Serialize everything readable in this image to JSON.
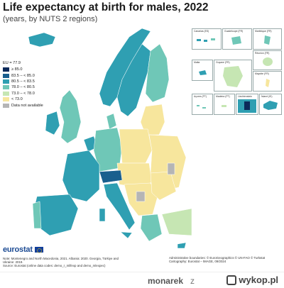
{
  "title": "Life expectancy at birth for males, 2022",
  "subtitle": "(years, by NUTS 2 regions)",
  "legend": {
    "average": "EU = 77.9",
    "classes": [
      {
        "label": "≥ 85.0",
        "color": "#0c2a5a"
      },
      {
        "label": "83.5 – < 85.0",
        "color": "#1a5f8e"
      },
      {
        "label": "80.5 – < 83.5",
        "color": "#2f9fb2"
      },
      {
        "label": "78.0 – < 80.5",
        "color": "#6fc7b7"
      },
      {
        "label": "73.0 – < 78.0",
        "color": "#c6e6b3"
      },
      {
        "label": "< 73.0",
        "color": "#f7e69d"
      },
      {
        "label": "Data not available",
        "color": "#b5b5b5"
      }
    ]
  },
  "insets": [
    {
      "label": "Canarias (ES)"
    },
    {
      "label": "Guadeloupe (FR)"
    },
    {
      "label": "Martinique (FR)"
    },
    {
      "label": "Réunion (FR)"
    },
    {
      "label": "Malta"
    },
    {
      "label": "Guyane (FR)"
    },
    {
      "label": "Mayotte (FR)"
    },
    {
      "label": "Açores (PT)"
    },
    {
      "label": "Madeira (PT)"
    },
    {
      "label": "Liechtenstein"
    },
    {
      "label": "Ísland (IS)"
    }
  ],
  "note": {
    "line1": "Note: Montenegro and North Macedonia, 2021. Albania: 2020. Georgia, Türkiye and",
    "line2": "Ukraine: 2019.",
    "line3": "Source: Eurostat (online data codes: demo_r_mlifexp and demo_mlexpec)"
  },
  "credits": {
    "line1": "Administrative boundaries: © EuroGeographics © UN-FAO © Turkstat",
    "line2": "Cartography: Eurostat – IMAGE, 09/2024"
  },
  "branding": {
    "eurostat": "eurostat"
  },
  "footer": {
    "user": "monarek",
    "z": "z",
    "site": "wykop.pl"
  }
}
